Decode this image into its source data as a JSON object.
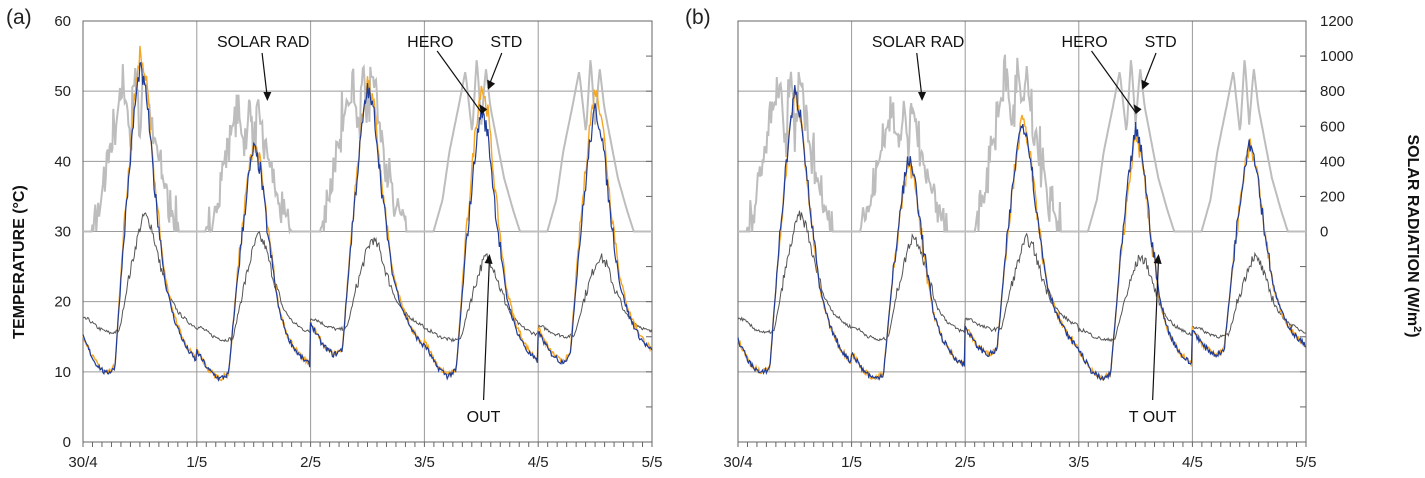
{
  "chart_data": [
    {
      "panel": "(a)",
      "type": "line",
      "x_tick_labels": [
        "30/4",
        "1/5",
        "2/5",
        "3/5",
        "4/5",
        "5/5"
      ],
      "ylabel": "TEMPERATURE (°C)",
      "ylim": [
        0,
        60
      ],
      "y_ticks": [
        0,
        10,
        20,
        30,
        40,
        50,
        60
      ],
      "grid": true,
      "series": [
        {
          "name": "SOLAR RAD",
          "color": "#bdbdbd",
          "axis": "right",
          "peaks": [
            970,
            780,
            1015,
            1015,
            1015
          ],
          "x": [
            0.05,
            0.17,
            0.25,
            0.35,
            0.45,
            0.47,
            0.5,
            0.55,
            0.6,
            0.65,
            0.72,
            0.8,
            0.84
          ],
          "daily_profile_w_m2": [
            0,
            300,
            450,
            700,
            900,
            500,
            950,
            800,
            650,
            300,
            200,
            50,
            0
          ]
        },
        {
          "name": "STD",
          "color": "#f5a623",
          "x": [
            0.0,
            0.1,
            0.2,
            0.3,
            0.38,
            0.45,
            0.5,
            0.56,
            0.62,
            0.7,
            0.75,
            0.8,
            0.9
          ],
          "daily_max": [
            55.5,
            43.0,
            51.5,
            51.0,
            50.5
          ],
          "daily_min": [
            9.8,
            9.0,
            12.5,
            9.5,
            11.5
          ]
        },
        {
          "name": "HERO",
          "color": "#1f3c99",
          "daily_max": [
            53.5,
            42.0,
            50.5,
            47.5,
            47.5
          ],
          "daily_min": [
            9.7,
            9.0,
            12.4,
            9.4,
            11.4
          ]
        },
        {
          "name": "OUT",
          "color": "#555555",
          "daily_max": [
            32.5,
            29.5,
            29.0,
            26.5,
            26.5
          ],
          "daily_min": [
            15.5,
            14.5,
            16.0,
            14.5,
            15.0
          ]
        }
      ],
      "annotations": [
        "SOLAR RAD",
        "HERO",
        "STD",
        "OUT"
      ]
    },
    {
      "panel": "(b)",
      "type": "line",
      "x_tick_labels": [
        "30/4",
        "1/5",
        "2/5",
        "3/5",
        "4/5",
        "5/5"
      ],
      "ylabel": "SOLAR RADIATION (W/m²)",
      "y_right_ticks": [
        0,
        200,
        400,
        600,
        800,
        1000,
        1200
      ],
      "ylim": [
        0,
        60
      ],
      "grid": true,
      "series": [
        {
          "name": "SOLAR RAD",
          "color": "#bdbdbd",
          "axis": "right",
          "peaks": [
            970,
            780,
            1015,
            1015,
            1015
          ]
        },
        {
          "name": "STD",
          "color": "#f5a623",
          "daily_max": [
            49.5,
            40.0,
            46.0,
            43.5,
            42.5
          ],
          "daily_min": [
            9.8,
            9.0,
            12.5,
            9.0,
            12.5
          ]
        },
        {
          "name": "HERO",
          "color": "#1f3c99",
          "daily_max": [
            50.0,
            40.5,
            46.0,
            44.5,
            43.0
          ],
          "daily_min": [
            9.7,
            9.0,
            12.4,
            8.9,
            12.4
          ]
        },
        {
          "name": "T OUT",
          "color": "#555555",
          "daily_max": [
            32.5,
            29.5,
            29.0,
            26.5,
            26.5
          ],
          "daily_min": [
            15.5,
            14.5,
            16.0,
            14.5,
            15.0
          ]
        }
      ],
      "annotations": [
        "SOLAR RAD",
        "HERO",
        "STD",
        "T OUT"
      ]
    }
  ],
  "colors": {
    "grid": "#9a9a9a",
    "solar": "#bdbdbd",
    "std": "#f5a623",
    "hero": "#1f3c99",
    "out": "#555555"
  },
  "left_axis_title": "TEMPERATURE (°C)",
  "right_axis_title": "SOLAR RADIATION (W/m²)",
  "right_axis_title_main": "SOLAR RADIATION (W/m",
  "right_axis_title_sup": "2",
  "right_axis_title_end": ")"
}
